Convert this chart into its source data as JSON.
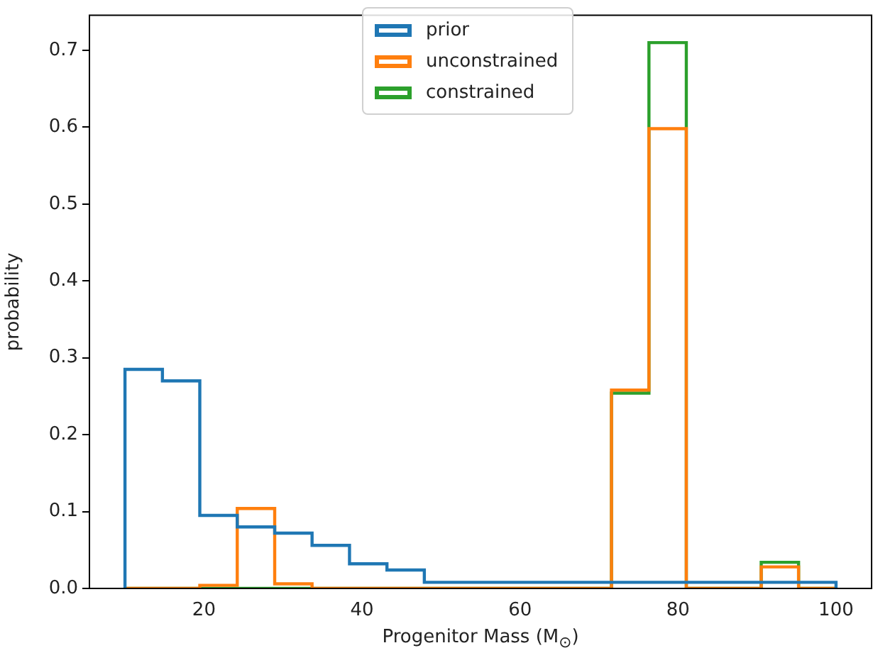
{
  "chart_data": {
    "type": "histogram",
    "xlabel": "Progenitor Mass (M$_{⊙}$)",
    "ylabel": "probability",
    "bins": [
      10,
      14.74,
      19.47,
      24.21,
      28.95,
      33.68,
      38.42,
      43.16,
      47.89,
      52.63,
      57.37,
      62.11,
      66.84,
      71.58,
      76.32,
      81.05,
      85.79,
      90.53,
      95.26,
      100
    ],
    "series": [
      {
        "name": "prior",
        "color": "#1f77b4",
        "values": [
          0.285,
          0.27,
          0.095,
          0.08,
          0.072,
          0.056,
          0.032,
          0.024,
          0.008,
          0.008,
          0.008,
          0.008,
          0.008,
          0.008,
          0.008,
          0.008,
          0.008,
          0.008,
          0.008
        ]
      },
      {
        "name": "unconstrained",
        "color": "#ff7f0e",
        "values": [
          0,
          0,
          0.004,
          0.104,
          0.006,
          0,
          0,
          0,
          0,
          0,
          0,
          0,
          0,
          0.258,
          0.598,
          0,
          0,
          0.028,
          0
        ]
      },
      {
        "name": "constrained",
        "color": "#2ca02c",
        "values": [
          0,
          0,
          0,
          0,
          0,
          0,
          0,
          0,
          0,
          0,
          0,
          0,
          0,
          0.254,
          0.71,
          0,
          0,
          0.034,
          0
        ]
      }
    ],
    "xlim": [
      5.5,
      104.5
    ],
    "xticks": [
      20,
      40,
      60,
      80,
      100
    ],
    "ylim": [
      0,
      0.7455
    ],
    "yticks": [
      {
        "value": 0,
        "label": "0.0"
      },
      {
        "value": 0.1,
        "label": "0.1"
      },
      {
        "value": 0.2,
        "label": "0.2"
      },
      {
        "value": 0.3,
        "label": "0.3"
      },
      {
        "value": 0.4,
        "label": "0.4"
      },
      {
        "value": 0.5,
        "label": "0.5"
      },
      {
        "value": 0.6,
        "label": "0.6"
      },
      {
        "value": 0.7,
        "label": "0.7"
      }
    ],
    "grid": false,
    "legend": "top"
  }
}
